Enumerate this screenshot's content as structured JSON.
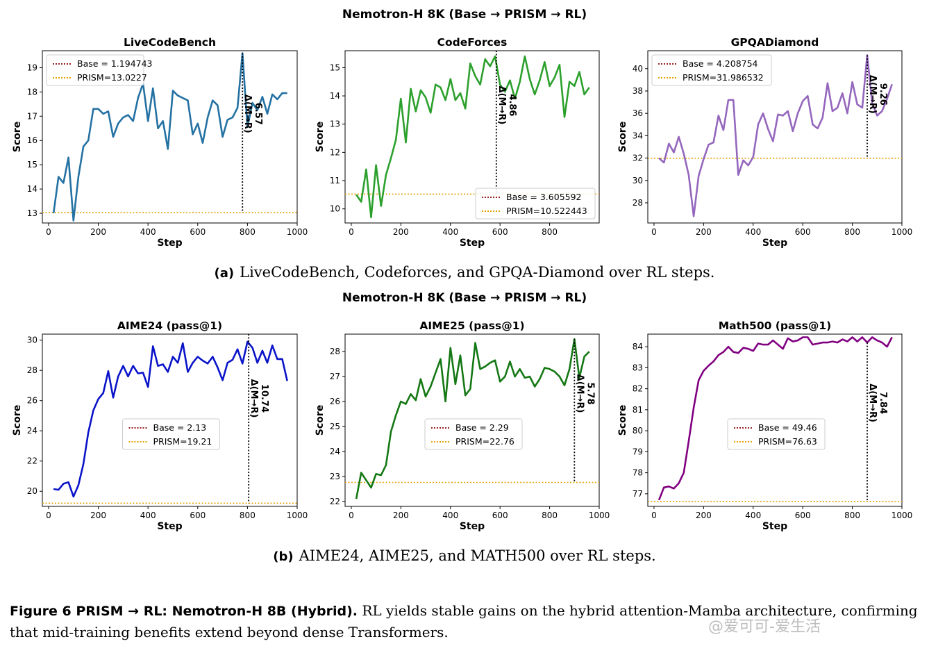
{
  "figure": {
    "suptitle_a": "Nemotron-H 8K (Base → PRISM → RL)",
    "suptitle_b": "Nemotron-H 8K (Base → PRISM → RL)",
    "caption_a_label": "(a)",
    "caption_a_text": "LiveCodeBench, Codeforces, and GPQA-Diamond over RL steps.",
    "caption_b_label": "(b)",
    "caption_b_text": "AIME24, AIME25, and MATH500 over RL steps.",
    "figcap_label": "Figure 6  PRISM → RL: Nemotron-H 8B (Hybrid).",
    "figcap_text": "RL yields stable gains on the hybrid attention-Mamba architecture, confirming that mid-training benefits extend beyond dense Transformers.",
    "watermark": "@爱可可-爱生活"
  },
  "chart_data": [
    {
      "type": "line",
      "title": "LiveCodeBench",
      "xlabel": "Step",
      "ylabel": "Score",
      "xlim": [
        -25,
        1000
      ],
      "ylim": [
        12.6,
        19.7
      ],
      "xticks": [
        0,
        200,
        400,
        600,
        800,
        1000
      ],
      "yticks": [
        13,
        14,
        15,
        16,
        17,
        18,
        19
      ],
      "color": "#2471a3",
      "legend_position": "top-left",
      "base_label": "Base = 1.194743",
      "prism_label": "PRISM=13.0227",
      "prism_value": 13.0227,
      "delta_x": 780,
      "delta_label": "Δ(M→R)",
      "delta_value": "6.57",
      "x": [
        20,
        40,
        60,
        80,
        100,
        120,
        140,
        160,
        180,
        200,
        220,
        240,
        260,
        280,
        300,
        320,
        340,
        360,
        380,
        400,
        420,
        440,
        460,
        480,
        500,
        520,
        540,
        560,
        580,
        600,
        620,
        640,
        660,
        680,
        700,
        720,
        740,
        760,
        780,
        800,
        820,
        840,
        860,
        880,
        900,
        920,
        940,
        960
      ],
      "y": [
        13.0,
        14.5,
        14.25,
        15.3,
        12.7,
        14.5,
        15.75,
        16.0,
        17.3,
        17.3,
        17.1,
        17.2,
        16.15,
        16.7,
        16.95,
        17.05,
        16.8,
        17.75,
        18.35,
        16.8,
        18.15,
        16.5,
        16.8,
        15.65,
        18.05,
        17.85,
        17.75,
        17.65,
        16.25,
        16.7,
        15.9,
        16.95,
        17.65,
        17.45,
        16.15,
        16.85,
        16.95,
        17.35,
        19.6,
        16.55,
        17.55,
        17.25,
        17.8,
        17.1,
        17.9,
        17.7,
        17.95,
        17.95
      ]
    },
    {
      "type": "line",
      "title": "CodeForces",
      "xlabel": "Step",
      "ylabel": "Score",
      "xlim": [
        -25,
        1000
      ],
      "ylim": [
        9.5,
        15.6
      ],
      "xticks": [
        0,
        200,
        400,
        600,
        800
      ],
      "yticks": [
        10,
        11,
        12,
        13,
        14,
        15
      ],
      "color": "#2ca02c",
      "legend_position": "bottom-right",
      "base_label": "Base = 3.605592",
      "prism_label": "PRISM=10.522443",
      "prism_value": 10.5224,
      "delta_x": 585,
      "delta_label": "Δ(M→R)",
      "delta_value": "4.86",
      "x": [
        20,
        40,
        60,
        80,
        100,
        120,
        140,
        160,
        180,
        200,
        220,
        240,
        260,
        280,
        300,
        320,
        340,
        360,
        380,
        400,
        420,
        440,
        460,
        480,
        500,
        520,
        540,
        560,
        580,
        600,
        620,
        640,
        660,
        680,
        700,
        720,
        740,
        760,
        780,
        800,
        820,
        840,
        860,
        880,
        900,
        920,
        940,
        960
      ],
      "y": [
        10.5,
        10.25,
        11.4,
        9.7,
        11.55,
        10.1,
        11.2,
        11.8,
        12.45,
        13.9,
        12.35,
        14.25,
        13.45,
        14.2,
        13.95,
        13.4,
        14.4,
        14.3,
        13.85,
        14.6,
        13.85,
        14.1,
        13.55,
        15.15,
        14.7,
        14.4,
        15.3,
        15.05,
        15.4,
        14.4,
        14.15,
        14.55,
        13.9,
        14.5,
        15.4,
        14.6,
        14.05,
        14.55,
        15.2,
        14.35,
        14.65,
        15.1,
        13.25,
        14.5,
        14.35,
        14.85,
        14.05,
        14.3
      ]
    },
    {
      "type": "line",
      "title": "GPQADiamond",
      "xlabel": "Step",
      "ylabel": "Score",
      "xlim": [
        -25,
        1000
      ],
      "ylim": [
        26.2,
        41.6
      ],
      "xticks": [
        0,
        200,
        400,
        600,
        800,
        1000
      ],
      "yticks": [
        28,
        30,
        32,
        34,
        36,
        38,
        40
      ],
      "color": "#9467bd",
      "legend_position": "top-left",
      "base_label": "Base = 4.208754",
      "prism_label": "PRISM=31.986532",
      "prism_value": 31.9865,
      "delta_x": 860,
      "delta_label": "Δ(M→R)",
      "delta_value": "9.26",
      "x": [
        20,
        40,
        60,
        80,
        100,
        120,
        140,
        160,
        180,
        200,
        220,
        240,
        260,
        280,
        300,
        320,
        340,
        360,
        380,
        400,
        420,
        440,
        460,
        480,
        500,
        520,
        540,
        560,
        580,
        600,
        620,
        640,
        660,
        680,
        700,
        720,
        740,
        760,
        780,
        800,
        820,
        840,
        860,
        880,
        900,
        920,
        940,
        960
      ],
      "y": [
        32.0,
        31.6,
        33.3,
        32.5,
        33.9,
        32.4,
        30.5,
        26.8,
        30.4,
        31.9,
        33.2,
        33.4,
        35.8,
        34.5,
        37.2,
        37.2,
        30.5,
        31.8,
        31.35,
        32.1,
        35.0,
        36.0,
        34.6,
        33.5,
        35.9,
        35.8,
        36.2,
        34.4,
        36.0,
        37.1,
        37.55,
        35.0,
        34.65,
        35.6,
        38.7,
        36.2,
        36.5,
        37.8,
        36.0,
        38.8,
        36.8,
        36.5,
        41.2,
        36.9,
        35.8,
        36.2,
        37.3,
        38.6
      ]
    },
    {
      "type": "line",
      "title": "AIME24 (pass@1)",
      "xlabel": "Step",
      "ylabel": "Score",
      "xlim": [
        -25,
        1000
      ],
      "ylim": [
        19.0,
        30.4
      ],
      "xticks": [
        0,
        200,
        400,
        600,
        800,
        1000
      ],
      "yticks": [
        20,
        22,
        24,
        26,
        28,
        30
      ],
      "color": "#0a14c8",
      "legend_position": "center",
      "base_label": "Base = 2.13",
      "prism_label": "PRISM=19.21",
      "prism_value": 19.21,
      "delta_x": 805,
      "delta_label": "Δ(M→R)",
      "delta_value": "10.74",
      "x": [
        20,
        40,
        60,
        80,
        100,
        120,
        140,
        160,
        180,
        200,
        220,
        240,
        260,
        280,
        300,
        320,
        340,
        360,
        380,
        400,
        420,
        440,
        460,
        480,
        500,
        520,
        540,
        560,
        580,
        600,
        620,
        640,
        660,
        680,
        700,
        720,
        740,
        760,
        780,
        800,
        820,
        840,
        860,
        880,
        900,
        920,
        940,
        960
      ],
      "y": [
        20.15,
        20.1,
        20.5,
        20.6,
        19.65,
        20.4,
        21.8,
        23.9,
        25.35,
        26.1,
        26.5,
        27.95,
        26.2,
        27.6,
        28.3,
        27.6,
        28.3,
        27.8,
        27.85,
        26.9,
        29.6,
        28.3,
        28.4,
        27.9,
        28.9,
        28.5,
        29.8,
        27.9,
        28.5,
        28.9,
        28.65,
        28.45,
        28.9,
        28.2,
        27.35,
        28.5,
        28.7,
        29.4,
        28.45,
        29.9,
        29.5,
        28.5,
        29.3,
        28.5,
        29.65,
        28.75,
        28.75,
        27.3
      ]
    },
    {
      "type": "line",
      "title": "AIME25 (pass@1)",
      "xlabel": "Step",
      "ylabel": "Score",
      "xlim": [
        -25,
        1000
      ],
      "ylim": [
        21.8,
        28.7
      ],
      "xticks": [
        0,
        200,
        400,
        600,
        800,
        1000
      ],
      "yticks": [
        22,
        23,
        24,
        25,
        26,
        27,
        28
      ],
      "color": "#147814",
      "legend_position": "center",
      "base_label": "Base = 2.29",
      "prism_label": "PRISM=22.76",
      "prism_value": 22.76,
      "delta_x": 900,
      "delta_label": "Δ(M→R)",
      "delta_value": "5.78",
      "x": [
        20,
        40,
        60,
        80,
        100,
        120,
        140,
        160,
        180,
        200,
        220,
        240,
        260,
        280,
        300,
        320,
        340,
        360,
        380,
        400,
        420,
        440,
        460,
        480,
        500,
        520,
        540,
        560,
        580,
        600,
        620,
        640,
        660,
        680,
        700,
        720,
        740,
        760,
        780,
        800,
        820,
        840,
        860,
        880,
        900,
        920,
        940,
        960
      ],
      "y": [
        22.1,
        23.15,
        22.85,
        22.55,
        23.1,
        23.05,
        23.45,
        24.8,
        25.45,
        26.0,
        25.9,
        26.3,
        26.05,
        26.9,
        26.2,
        26.6,
        27.15,
        27.7,
        26.0,
        28.15,
        26.7,
        27.85,
        26.25,
        26.5,
        28.35,
        27.3,
        27.4,
        27.55,
        27.65,
        26.8,
        27.0,
        27.6,
        27.0,
        27.3,
        26.95,
        27.0,
        26.6,
        26.9,
        27.35,
        27.3,
        27.2,
        27.0,
        26.65,
        27.3,
        28.5,
        26.95,
        27.8,
        28.0
      ]
    },
    {
      "type": "line",
      "title": "Math500 (pass@1)",
      "xlabel": "Step",
      "ylabel": "Score",
      "xlim": [
        -25,
        1000
      ],
      "ylim": [
        76.4,
        84.6
      ],
      "xticks": [
        0,
        200,
        400,
        600,
        800,
        1000
      ],
      "yticks": [
        77,
        78,
        79,
        80,
        81,
        82,
        83,
        84
      ],
      "color": "#800080",
      "legend_position": "center",
      "base_label": "Base = 49.46",
      "prism_label": "PRISM=76.63",
      "prism_value": 76.63,
      "delta_x": 860,
      "delta_label": "Δ(M→R)",
      "delta_value": "7.84",
      "x": [
        20,
        40,
        60,
        80,
        100,
        120,
        140,
        160,
        180,
        200,
        220,
        240,
        260,
        280,
        300,
        320,
        340,
        360,
        380,
        400,
        420,
        440,
        460,
        480,
        500,
        520,
        540,
        560,
        580,
        600,
        620,
        640,
        660,
        680,
        700,
        720,
        740,
        760,
        780,
        800,
        820,
        840,
        860,
        880,
        900,
        920,
        940,
        960
      ],
      "y": [
        76.7,
        77.3,
        77.35,
        77.25,
        77.5,
        78.0,
        79.5,
        81.1,
        82.4,
        82.85,
        83.1,
        83.3,
        83.6,
        83.75,
        84.0,
        83.75,
        83.7,
        83.95,
        83.9,
        83.8,
        84.15,
        84.1,
        84.1,
        84.3,
        84.1,
        83.9,
        84.4,
        84.25,
        84.3,
        84.45,
        84.45,
        84.1,
        84.15,
        84.2,
        84.2,
        84.25,
        84.2,
        84.35,
        84.25,
        84.45,
        84.25,
        84.45,
        84.2,
        84.45,
        84.3,
        84.2,
        84.0,
        84.45
      ]
    }
  ]
}
